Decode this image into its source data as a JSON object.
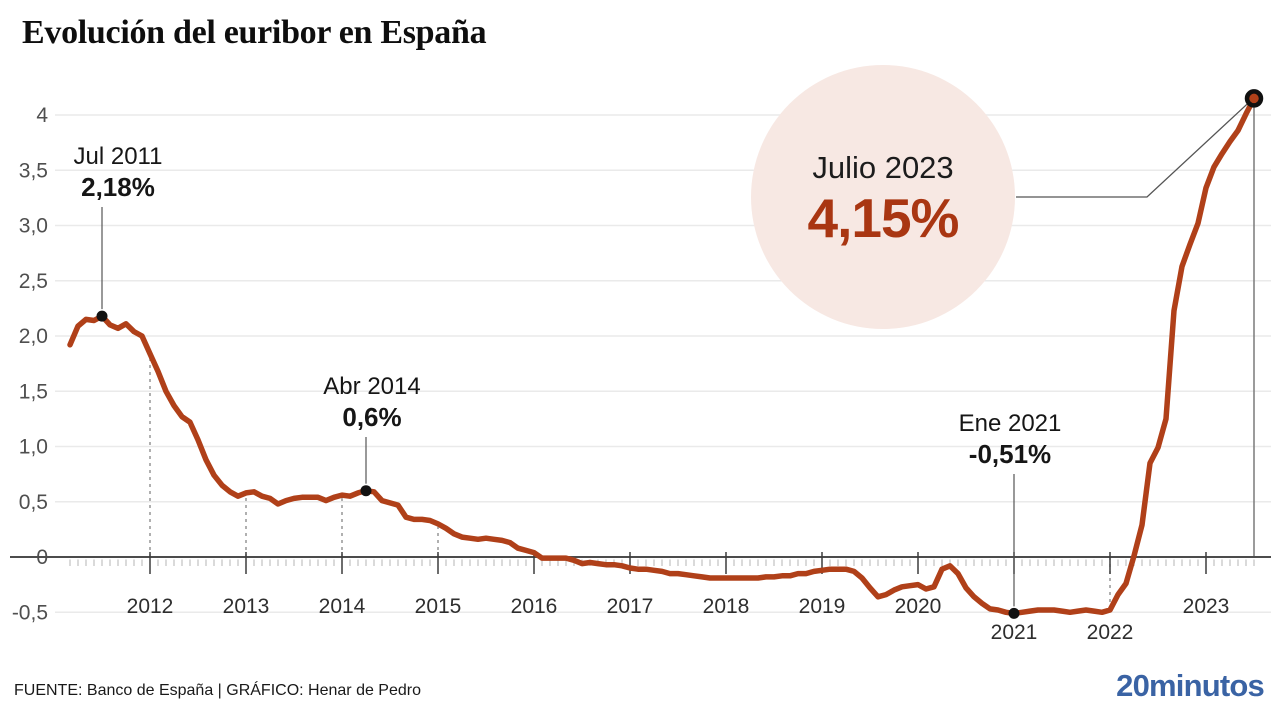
{
  "title": "Evolución del euribor en España",
  "footer": {
    "source": "FUENTE: Banco de España  |  GRÁFICO: Henar de Pedro",
    "logo": "20minutos"
  },
  "colors": {
    "line": "#b04019",
    "highlight_bg": "#f7e8e3",
    "annotation_value_red": "#a93612",
    "logo_blue": "#3a63a4",
    "gridline": "#eaeaea",
    "axis": "#4c4c4c"
  },
  "chart_data": {
    "type": "line",
    "title": "Evolución del euribor en España",
    "unit": "%",
    "ylim": [
      -0.5,
      4
    ],
    "grid": "horizontal",
    "y_axis": {
      "ticks": [
        {
          "label": "4",
          "value": 4
        },
        {
          "label": "3,5",
          "value": 3.5
        },
        {
          "label": "3,0",
          "value": 3.0
        },
        {
          "label": "2,5",
          "value": 2.5
        },
        {
          "label": "2,0",
          "value": 2.0
        },
        {
          "label": "1,5",
          "value": 1.5
        },
        {
          "label": "1,0",
          "value": 1.0
        },
        {
          "label": "0,5",
          "value": 0.5
        },
        {
          "label": "0",
          "value": 0
        },
        {
          "label": "-0,5",
          "value": -0.5
        }
      ]
    },
    "x_axis": {
      "years": [
        2012,
        2013,
        2014,
        2015,
        2016,
        2017,
        2018,
        2019,
        2020,
        2021,
        2022,
        2023
      ],
      "low_years": [
        2021,
        2022
      ]
    },
    "dashed_guide_years": [
      2012,
      2013,
      2014,
      2015,
      2016,
      2022
    ],
    "series": [
      {
        "name": "euribor",
        "start_year": 2011,
        "start_month": 3,
        "values": [
          1.92,
          2.09,
          2.15,
          2.14,
          2.18,
          2.1,
          2.07,
          2.11,
          2.04,
          2.0,
          1.84,
          1.68,
          1.5,
          1.37,
          1.27,
          1.22,
          1.06,
          0.88,
          0.74,
          0.65,
          0.59,
          0.55,
          0.58,
          0.59,
          0.55,
          0.53,
          0.48,
          0.51,
          0.53,
          0.54,
          0.54,
          0.54,
          0.51,
          0.54,
          0.56,
          0.55,
          0.58,
          0.6,
          0.59,
          0.51,
          0.49,
          0.47,
          0.36,
          0.34,
          0.34,
          0.33,
          0.3,
          0.26,
          0.21,
          0.18,
          0.17,
          0.16,
          0.17,
          0.16,
          0.15,
          0.13,
          0.08,
          0.06,
          0.04,
          -0.01,
          -0.01,
          -0.01,
          -0.01,
          -0.03,
          -0.06,
          -0.05,
          -0.06,
          -0.07,
          -0.07,
          -0.08,
          -0.1,
          -0.11,
          -0.11,
          -0.12,
          -0.13,
          -0.15,
          -0.15,
          -0.16,
          -0.17,
          -0.18,
          -0.19,
          -0.19,
          -0.19,
          -0.19,
          -0.19,
          -0.19,
          -0.19,
          -0.18,
          -0.18,
          -0.17,
          -0.17,
          -0.15,
          -0.15,
          -0.13,
          -0.12,
          -0.11,
          -0.11,
          -0.11,
          -0.13,
          -0.19,
          -0.28,
          -0.36,
          -0.34,
          -0.3,
          -0.27,
          -0.26,
          -0.25,
          -0.29,
          -0.27,
          -0.11,
          -0.08,
          -0.15,
          -0.28,
          -0.36,
          -0.42,
          -0.47,
          -0.48,
          -0.5,
          -0.51,
          -0.5,
          -0.49,
          -0.48,
          -0.48,
          -0.48,
          -0.49,
          -0.5,
          -0.49,
          -0.48,
          -0.49,
          -0.5,
          -0.48,
          -0.34,
          -0.24,
          0.01,
          0.29,
          0.85,
          0.99,
          1.25,
          2.23,
          2.63,
          2.83,
          3.02,
          3.34,
          3.53,
          3.65,
          3.76,
          3.86,
          4.01,
          4.15
        ]
      }
    ],
    "annotations": [
      {
        "date_label": "Jul 2011",
        "value_label": "2,18%",
        "year_frac": 2011.5,
        "value": 2.18
      },
      {
        "date_label": "Abr 2014",
        "value_label": "0,6%",
        "year_frac": 2014.25,
        "value": 0.6
      },
      {
        "date_label": "Ene 2021",
        "value_label": "-0,51%",
        "year_frac": 2021.0,
        "value": -0.51
      },
      {
        "date_label": "Julio 2023",
        "value_label": "4,15%",
        "year_frac": 2023.5,
        "value": 4.15,
        "style": "highlight-circle"
      }
    ]
  }
}
